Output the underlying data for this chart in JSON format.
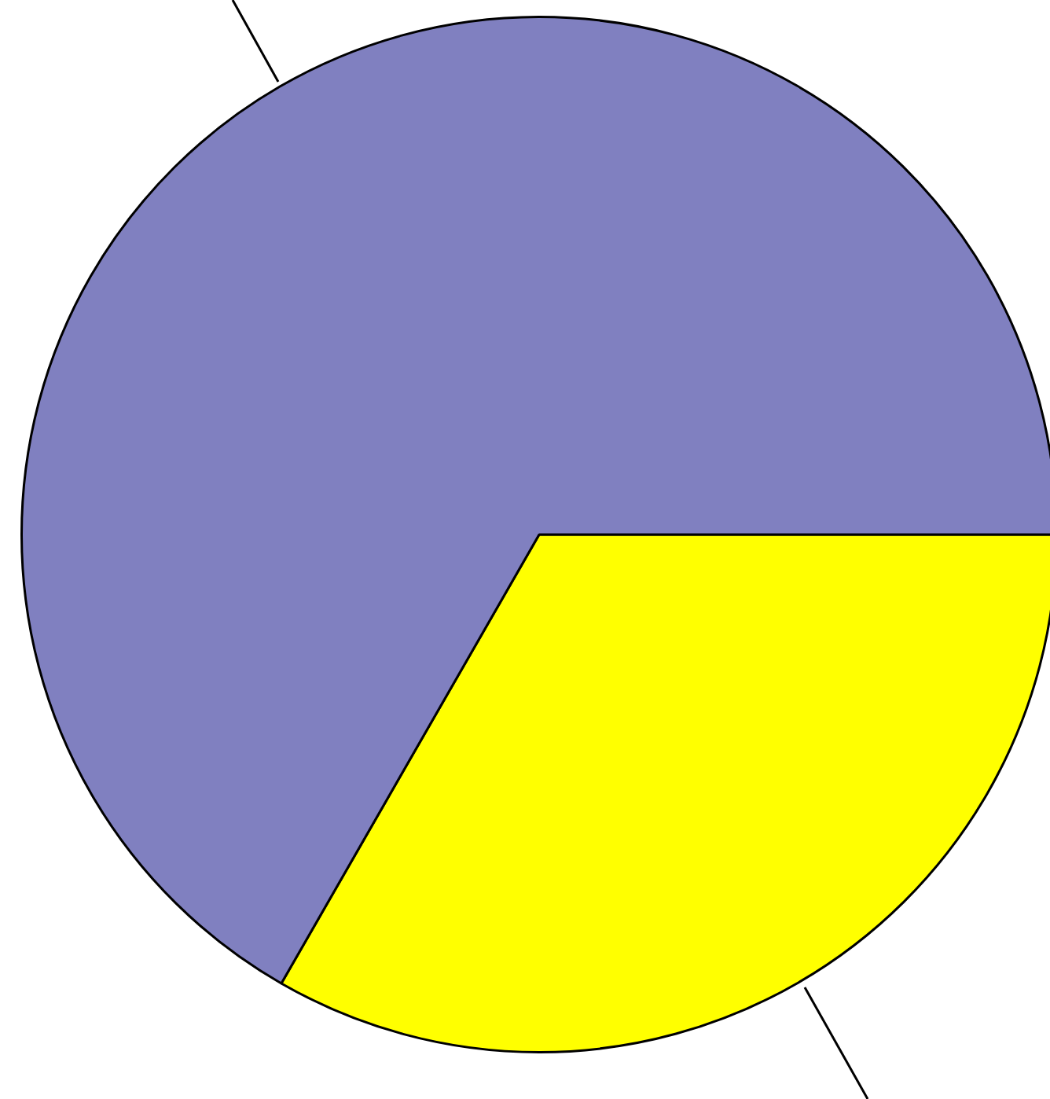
{
  "chart_data": {
    "type": "pie",
    "categories": [
      null,
      null
    ],
    "values": [
      33.3,
      66.7
    ],
    "colors": [
      "#ffff00",
      "#8080c0"
    ],
    "legend": false
  }
}
